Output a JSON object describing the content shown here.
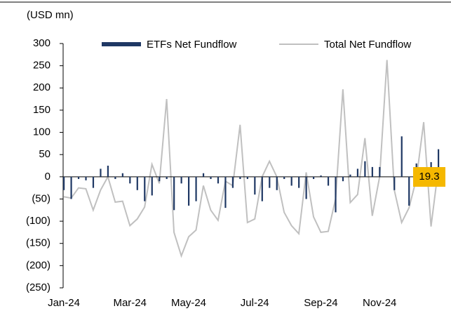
{
  "chart_data": {
    "type": "bar_line",
    "title": "(USD mn)",
    "annotation": "19.3",
    "categories": [
      "Jan-24",
      null,
      null,
      null,
      null,
      null,
      null,
      null,
      null,
      "Mar-24",
      null,
      null,
      null,
      null,
      null,
      null,
      null,
      "May-24",
      null,
      null,
      null,
      null,
      null,
      null,
      null,
      null,
      "Jul-24",
      null,
      null,
      null,
      null,
      null,
      null,
      null,
      null,
      "Sep-24",
      null,
      null,
      null,
      null,
      null,
      null,
      null,
      "Nov-24",
      null,
      null,
      null,
      null,
      null,
      null,
      null,
      null
    ],
    "series": [
      {
        "name": "ETFs Net Fundflow",
        "type": "bar",
        "color": "#1f3864",
        "values": [
          -30,
          -50,
          -5,
          -8,
          -25,
          18,
          25,
          -5,
          8,
          -15,
          -30,
          -55,
          -42,
          -10,
          -5,
          -75,
          -15,
          -65,
          -55,
          8,
          -5,
          -15,
          -70,
          -25,
          -5,
          -5,
          -40,
          -55,
          -25,
          -30,
          -5,
          -20,
          -25,
          -50,
          -5,
          3,
          -20,
          -80,
          -10,
          5,
          18,
          35,
          22,
          22,
          0,
          -30,
          91,
          -65,
          30,
          0,
          33,
          62
        ]
      },
      {
        "name": "Total Net Fundflow",
        "type": "line",
        "color": "#c0c0c0",
        "values": [
          -45,
          -48,
          -25,
          -27,
          -75,
          -30,
          0,
          -57,
          -55,
          -110,
          -95,
          -68,
          28,
          -15,
          175,
          -125,
          -178,
          -135,
          -120,
          -20,
          -75,
          -98,
          -10,
          -20,
          117,
          -103,
          -95,
          0,
          35,
          0,
          -80,
          -110,
          -128,
          10,
          -90,
          -125,
          -123,
          -50,
          197,
          -58,
          -40,
          87,
          -88,
          0,
          263,
          -30,
          -103,
          -70,
          -5,
          123,
          -112,
          19.3
        ]
      }
    ],
    "ylim": [
      -250,
      300
    ],
    "yticks": [
      {
        "value": -250,
        "label": "(250)"
      },
      {
        "value": -200,
        "label": "(200)"
      },
      {
        "value": -150,
        "label": "(150)"
      },
      {
        "value": -100,
        "label": "(100)"
      },
      {
        "value": -50,
        "label": "(50)"
      },
      0,
      50,
      100,
      150,
      200,
      250,
      300
    ],
    "legend": "top"
  }
}
